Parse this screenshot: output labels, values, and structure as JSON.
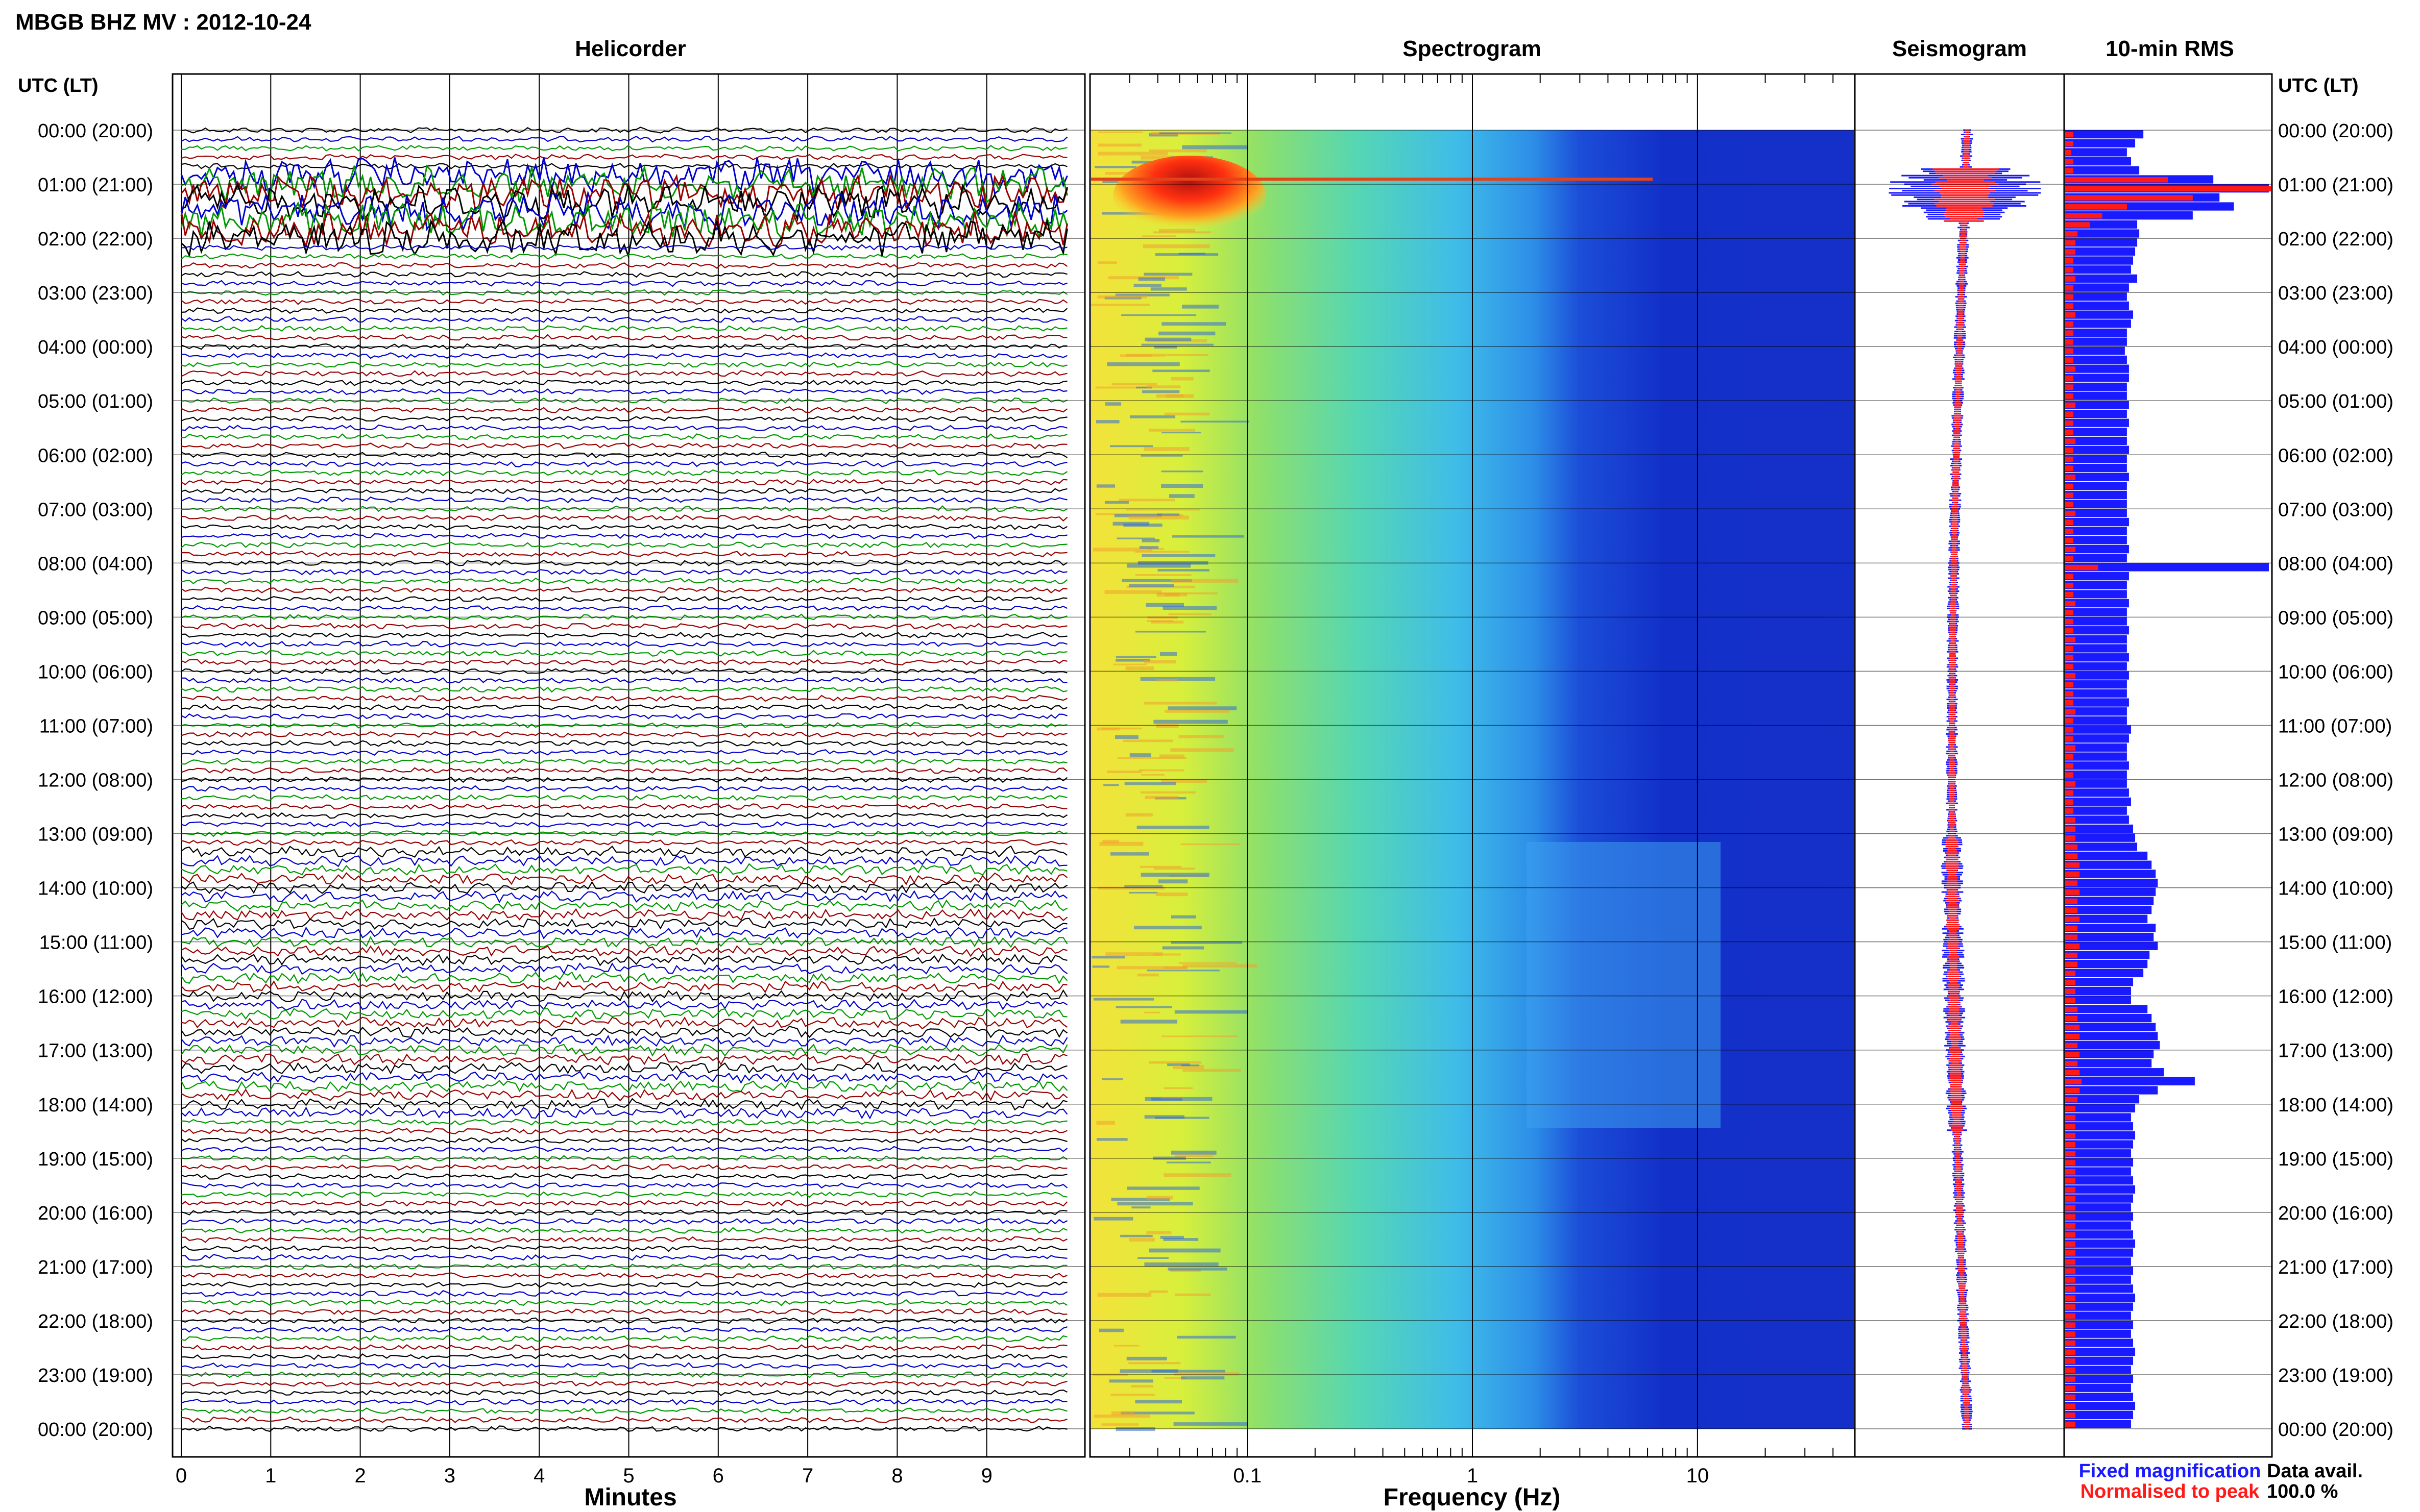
{
  "header": {
    "title": "MBGB BHZ MV : 2012-10-24",
    "time_axis_label": "UTC (LT)"
  },
  "panels": {
    "helicorder": "Helicorder",
    "spectrogram": "Spectrogram",
    "seismogram": "Seismogram",
    "rms": "10-min RMS"
  },
  "legend": {
    "fixed": "Fixed magnification",
    "normalised": "Normalised to peak",
    "fixed_color": "#1a1aff",
    "normalised_color": "#ff1a1a"
  },
  "data_avail": {
    "label": "Data avail.",
    "value": "100.0 %"
  },
  "chart_data": {
    "type": "line",
    "time_ticks": [
      "00:00 (20:00)",
      "01:00 (21:00)",
      "02:00 (22:00)",
      "03:00 (23:00)",
      "04:00 (00:00)",
      "05:00 (01:00)",
      "06:00 (02:00)",
      "07:00 (03:00)",
      "08:00 (04:00)",
      "09:00 (05:00)",
      "10:00 (06:00)",
      "11:00 (07:00)",
      "12:00 (08:00)",
      "13:00 (09:00)",
      "14:00 (10:00)",
      "15:00 (11:00)",
      "16:00 (12:00)",
      "17:00 (13:00)",
      "18:00 (14:00)",
      "19:00 (15:00)",
      "20:00 (16:00)",
      "21:00 (17:00)",
      "22:00 (18:00)",
      "23:00 (19:00)",
      "00:00 (20:00)"
    ],
    "helicorder": {
      "xlabel": "Minutes",
      "xlim": [
        0,
        10
      ],
      "xticks": [
        0,
        1,
        2,
        3,
        4,
        5,
        6,
        7,
        8,
        9
      ],
      "trace_colors": [
        "#000000",
        "#0000cc",
        "#009900",
        "#990000"
      ]
    },
    "spectrogram": {
      "xlabel": "Frequency (Hz)",
      "scale": "log",
      "xlim": [
        0.02,
        50
      ],
      "xticks": [
        0.1,
        1,
        10
      ],
      "xtick_labels": [
        "0.1",
        "1",
        "10"
      ]
    },
    "rms_blue": [
      0.38,
      0.34,
      0.3,
      0.32,
      0.36,
      0.72,
      0.99,
      0.75,
      0.82,
      0.62,
      0.35,
      0.36,
      0.35,
      0.34,
      0.33,
      0.32,
      0.35,
      0.31,
      0.3,
      0.31,
      0.33,
      0.32,
      0.3,
      0.3,
      0.29,
      0.3,
      0.31,
      0.31,
      0.3,
      0.3,
      0.31,
      0.3,
      0.31,
      0.3,
      0.3,
      0.31,
      0.3,
      0.3,
      0.31,
      0.3,
      0.3,
      0.3,
      0.3,
      0.31,
      0.3,
      0.3,
      0.31,
      0.3,
      0.99,
      0.31,
      0.3,
      0.3,
      0.31,
      0.3,
      0.3,
      0.31,
      0.3,
      0.3,
      0.31,
      0.3,
      0.31,
      0.3,
      0.3,
      0.31,
      0.3,
      0.3,
      0.32,
      0.31,
      0.3,
      0.3,
      0.31,
      0.3,
      0.3,
      0.31,
      0.32,
      0.3,
      0.31,
      0.33,
      0.34,
      0.35,
      0.4,
      0.42,
      0.44,
      0.45,
      0.44,
      0.43,
      0.42,
      0.4,
      0.44,
      0.43,
      0.45,
      0.41,
      0.4,
      0.38,
      0.33,
      0.32,
      0.32,
      0.4,
      0.42,
      0.44,
      0.45,
      0.46,
      0.43,
      0.42,
      0.48,
      0.63,
      0.45,
      0.36,
      0.34,
      0.32,
      0.33,
      0.34,
      0.33,
      0.32,
      0.33,
      0.32,
      0.33,
      0.34,
      0.33,
      0.32,
      0.33,
      0.32,
      0.33,
      0.34,
      0.33,
      0.32,
      0.33,
      0.32,
      0.33,
      0.34,
      0.33,
      0.32,
      0.33,
      0.32,
      0.33,
      0.34,
      0.33,
      0.32,
      0.33,
      0.32,
      0.33,
      0.34,
      0.33,
      0.32
    ],
    "rms_red": [
      0.04,
      0.04,
      0.03,
      0.04,
      0.04,
      0.5,
      1.0,
      0.62,
      0.3,
      0.18,
      0.12,
      0.06,
      0.05,
      0.05,
      0.04,
      0.04,
      0.05,
      0.04,
      0.04,
      0.04,
      0.05,
      0.04,
      0.04,
      0.04,
      0.04,
      0.04,
      0.05,
      0.04,
      0.04,
      0.04,
      0.05,
      0.04,
      0.04,
      0.04,
      0.05,
      0.04,
      0.04,
      0.04,
      0.05,
      0.04,
      0.04,
      0.04,
      0.05,
      0.04,
      0.04,
      0.04,
      0.05,
      0.04,
      0.16,
      0.04,
      0.04,
      0.04,
      0.05,
      0.04,
      0.04,
      0.04,
      0.05,
      0.04,
      0.04,
      0.04,
      0.05,
      0.04,
      0.04,
      0.04,
      0.05,
      0.04,
      0.04,
      0.04,
      0.05,
      0.04,
      0.04,
      0.04,
      0.05,
      0.04,
      0.04,
      0.04,
      0.05,
      0.05,
      0.05,
      0.06,
      0.06,
      0.07,
      0.07,
      0.06,
      0.07,
      0.06,
      0.06,
      0.07,
      0.06,
      0.06,
      0.07,
      0.06,
      0.06,
      0.05,
      0.05,
      0.05,
      0.05,
      0.06,
      0.06,
      0.07,
      0.07,
      0.06,
      0.07,
      0.06,
      0.07,
      0.08,
      0.07,
      0.06,
      0.05,
      0.05,
      0.05,
      0.05,
      0.05,
      0.05,
      0.05,
      0.05,
      0.05,
      0.05,
      0.05,
      0.05,
      0.05,
      0.05,
      0.05,
      0.05,
      0.05,
      0.05,
      0.05,
      0.05,
      0.05,
      0.05,
      0.05,
      0.05,
      0.05,
      0.05,
      0.05,
      0.05,
      0.05,
      0.05,
      0.05,
      0.05,
      0.05,
      0.05,
      0.05,
      0.05
    ],
    "rms_xlim": [
      0,
      1
    ]
  }
}
